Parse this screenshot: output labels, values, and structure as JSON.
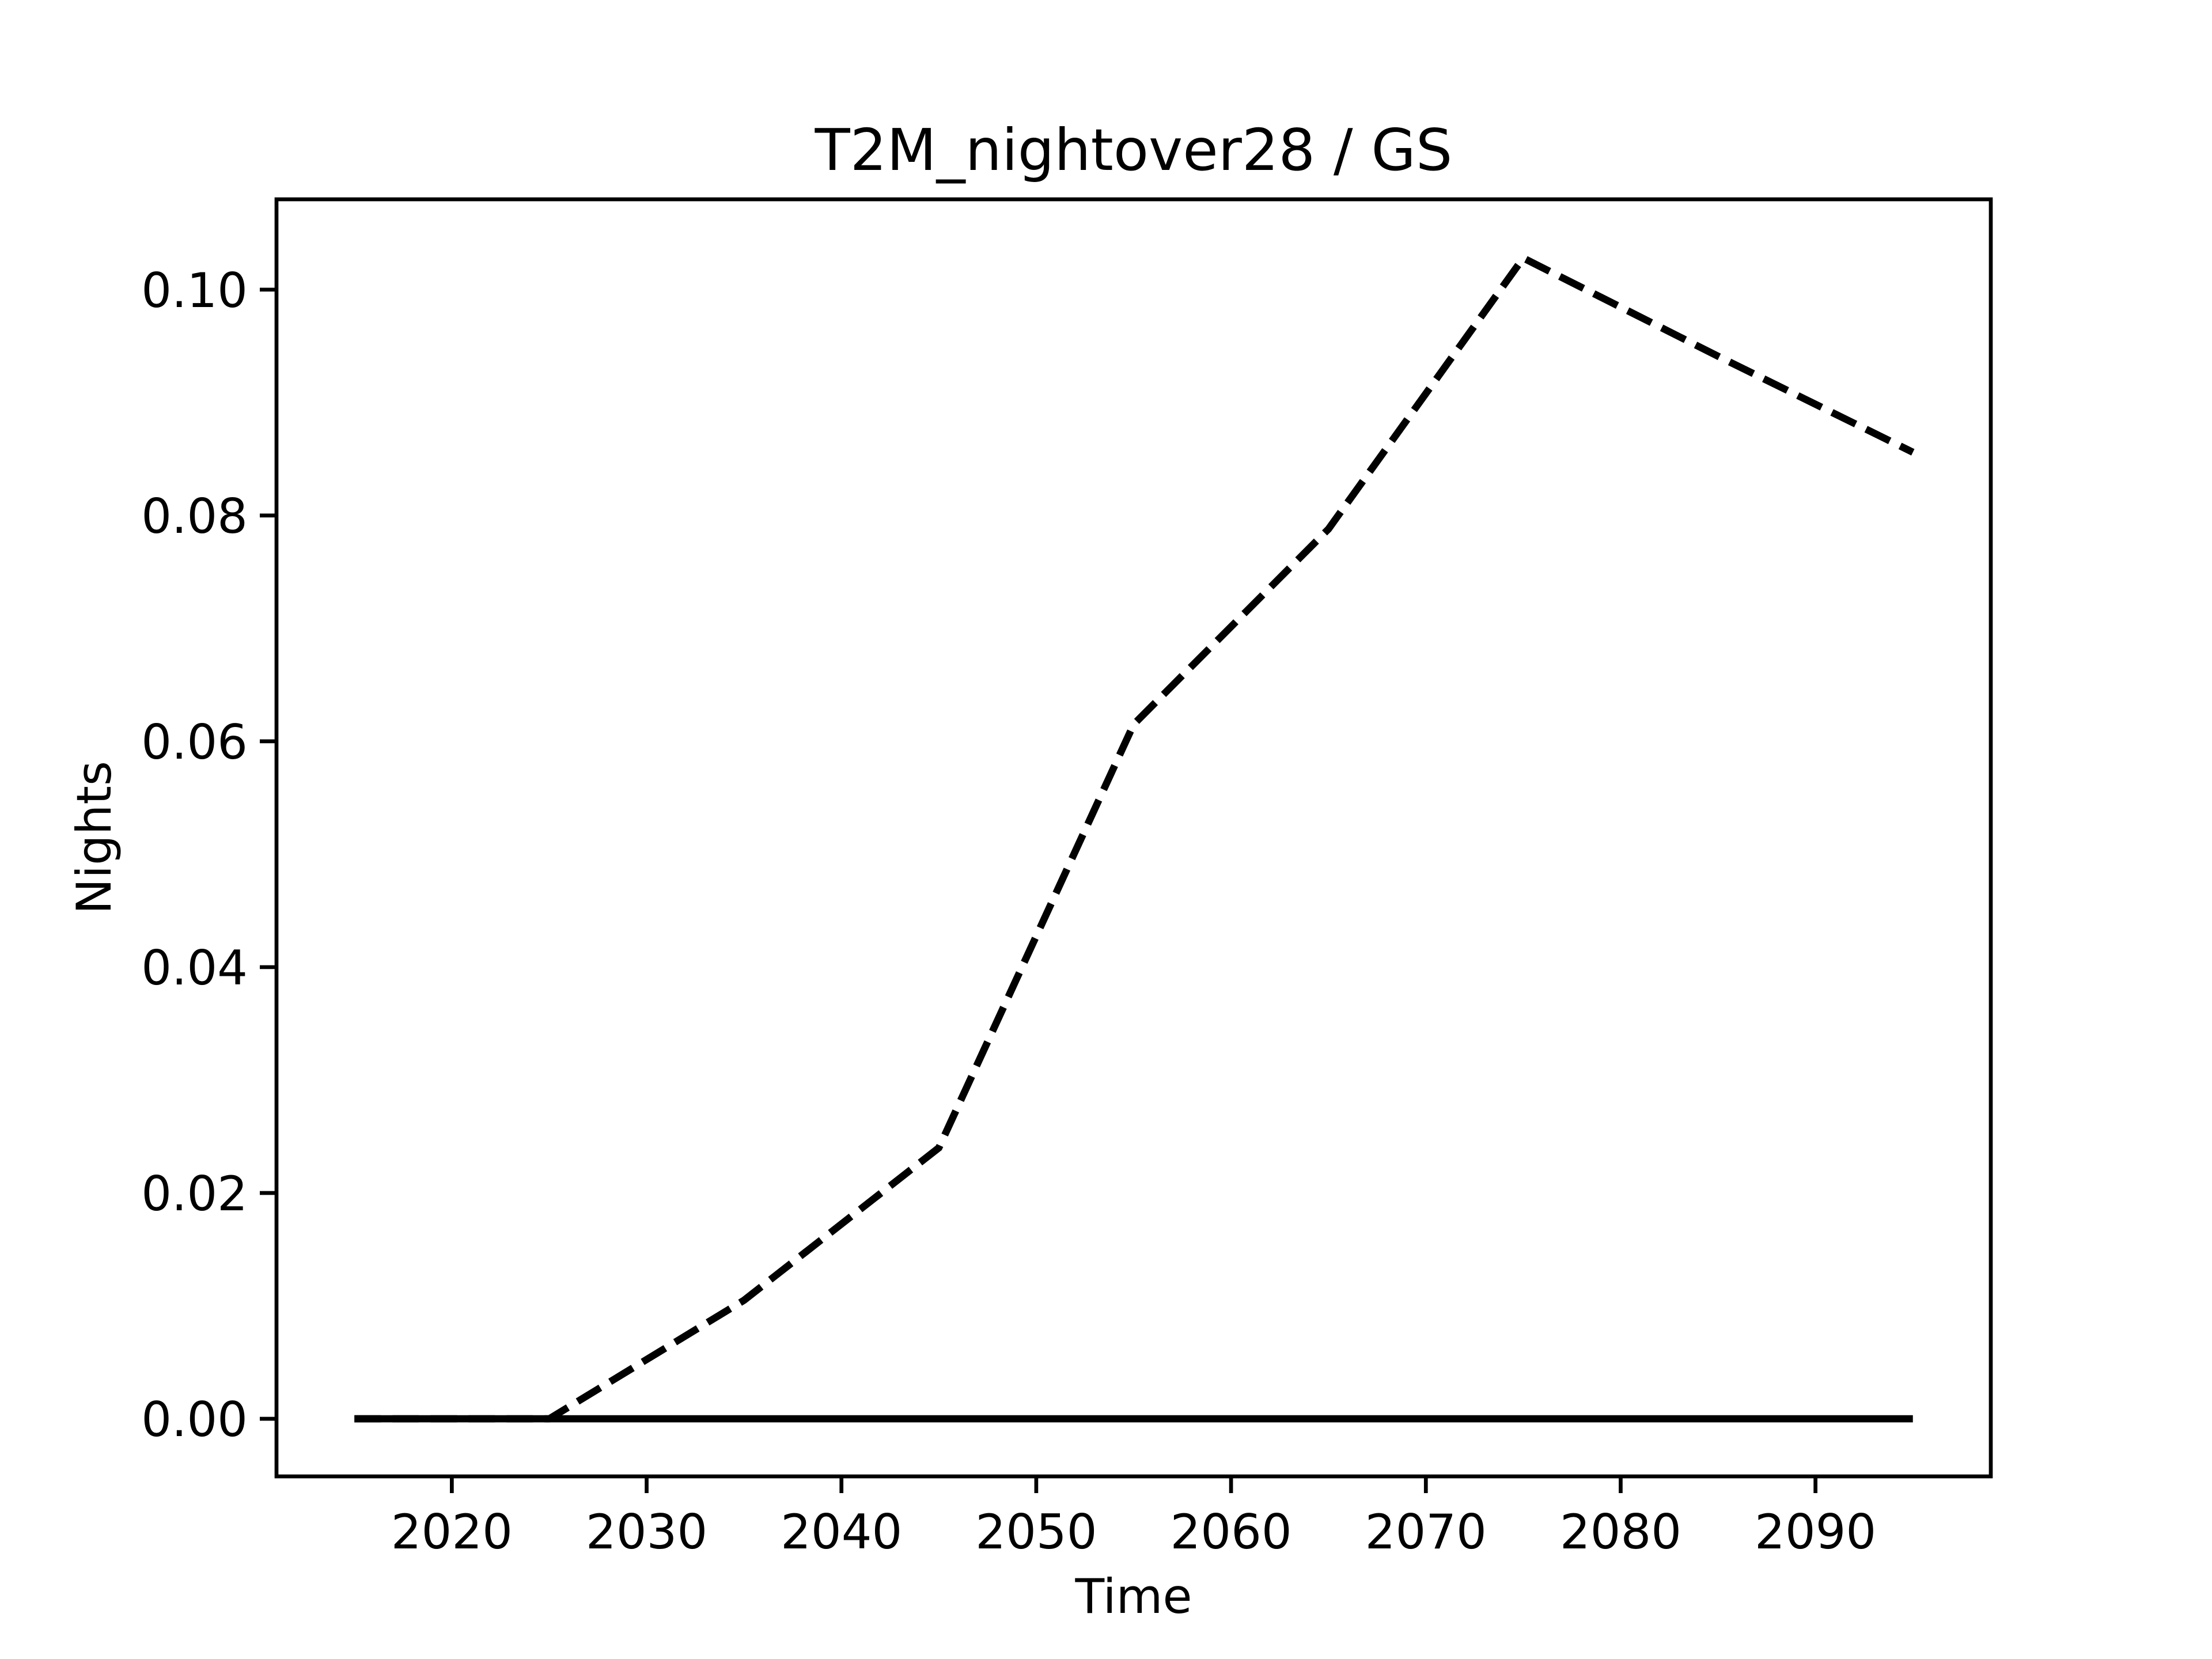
{
  "chart_data": {
    "type": "line",
    "title": "T2M_nightover28 / GS",
    "xlabel": "Time",
    "ylabel": "Nights",
    "x": [
      2015,
      2025,
      2035,
      2045,
      2055,
      2065,
      2075,
      2085,
      2095
    ],
    "series": [
      {
        "color": "#000000",
        "linestyle": "dashed",
        "values": [
          0,
          0,
          0.0105,
          0.024,
          0.0615,
          0.0788,
          0.1028,
          0.0941,
          0.0856
        ]
      },
      {
        "color": "#000000",
        "linestyle": "solid",
        "values": [
          0,
          0,
          0,
          0,
          0,
          0,
          0,
          0,
          0
        ]
      }
    ],
    "xlim": [
      2011,
      2099
    ],
    "xticks": [
      2020,
      2030,
      2040,
      2050,
      2060,
      2070,
      2080,
      2090
    ],
    "ylim": [
      -0.0051,
      0.108
    ],
    "yticks": [
      {
        "value": 0,
        "label": "0.00"
      },
      {
        "value": 0.02,
        "label": "0.02"
      },
      {
        "value": 0.04,
        "label": "0.04"
      },
      {
        "value": 0.06,
        "label": "0.06"
      },
      {
        "value": 0.08,
        "label": "0.08"
      },
      {
        "value": 0.1,
        "label": "0.10"
      }
    ],
    "grid": false
  }
}
